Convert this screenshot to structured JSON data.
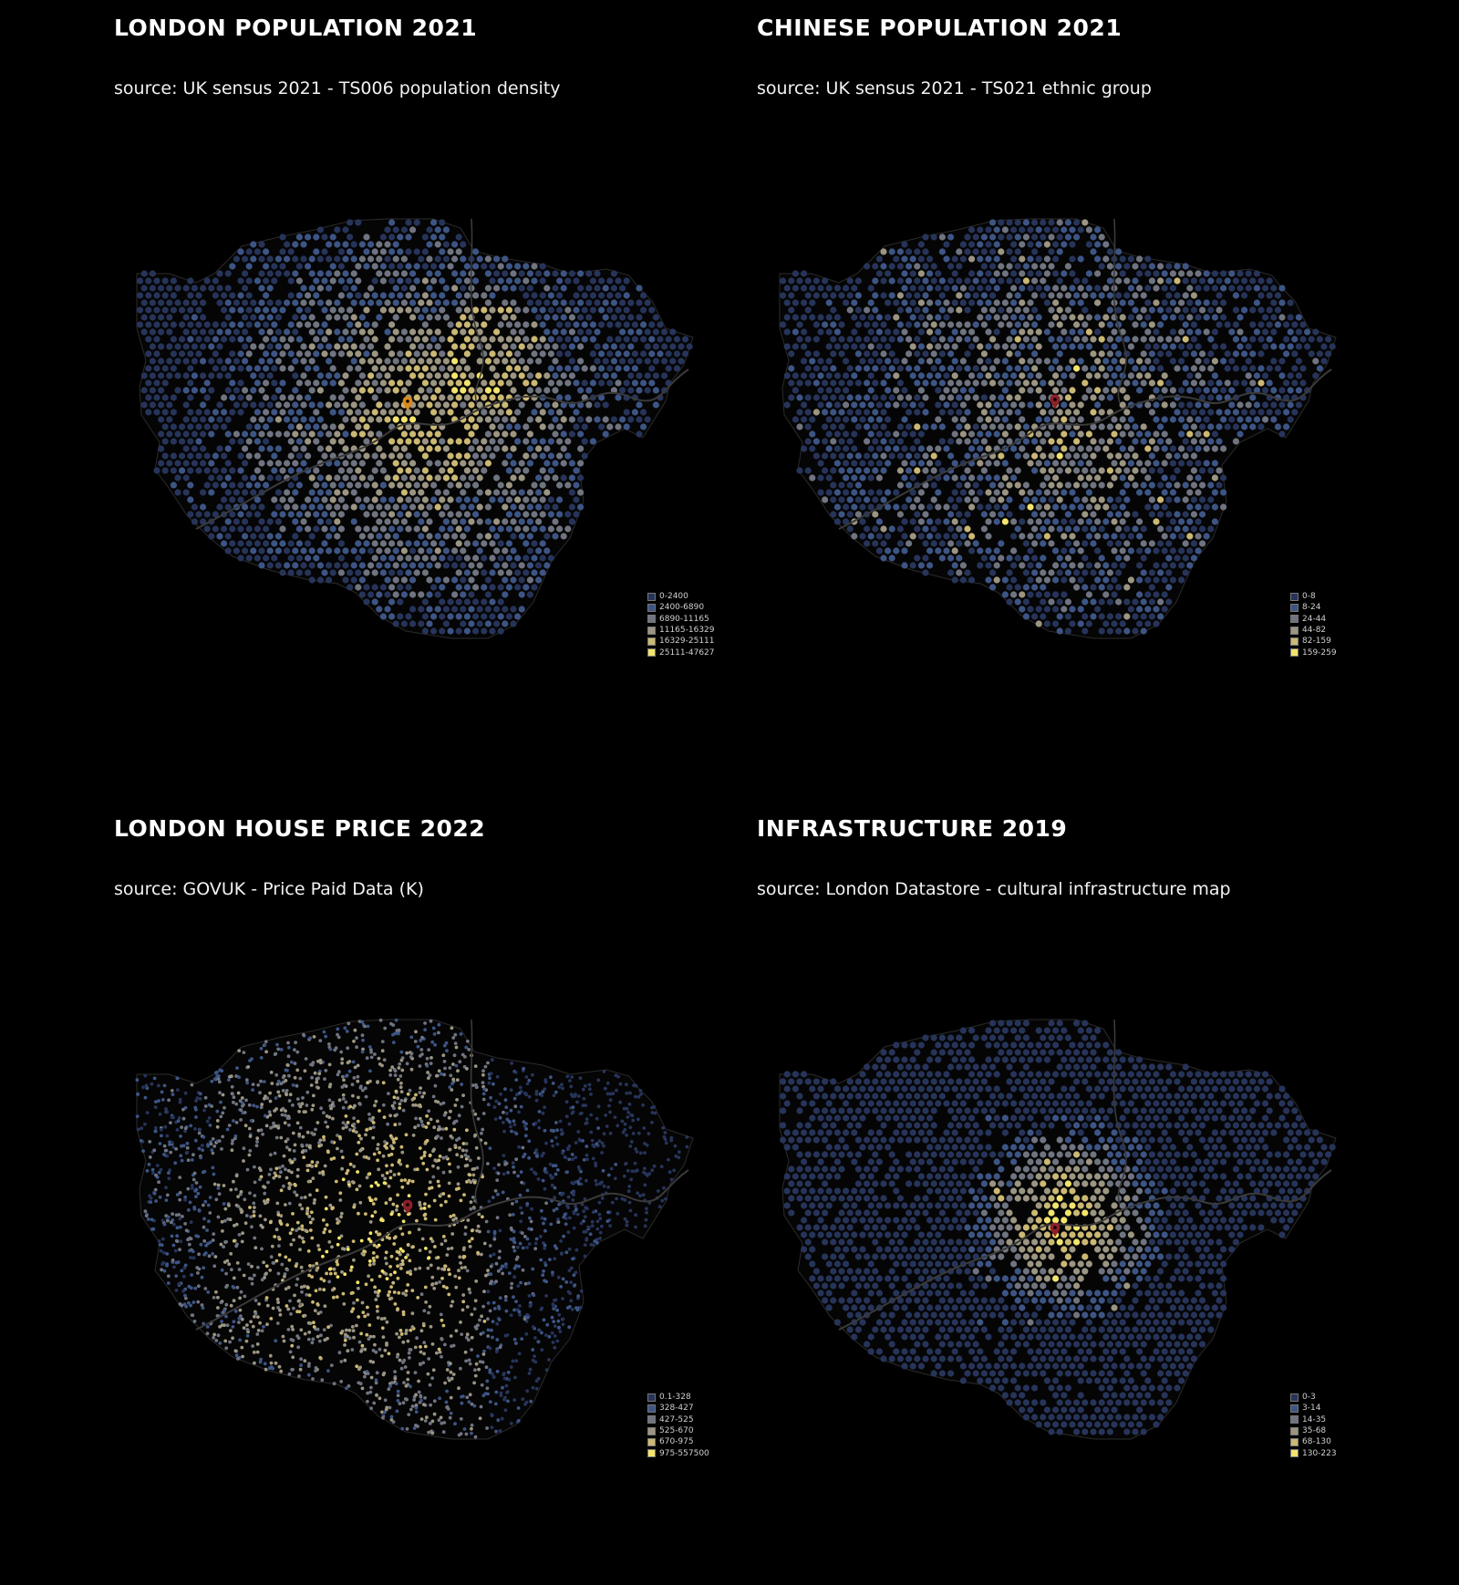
{
  "palette": [
    "#27345a",
    "#3d5585",
    "#6f7480",
    "#9b9582",
    "#cbb873",
    "#f3e46c"
  ],
  "marker_color_orange": "#d98a1f",
  "marker_color_red": "#8c1f28",
  "panels": [
    {
      "title": "LONDON POPULATION 2021",
      "source": "source: UK sensus 2021 - TS006 population density",
      "map_style": "hex",
      "pattern": "population",
      "marker_icon": "location-pin-icon",
      "legend": [
        "0-2400",
        "2400-6890",
        "6890-11165",
        "11165-16329",
        "16329-25111",
        "25111-47627"
      ]
    },
    {
      "title": "CHINESE POPULATION 2021",
      "source": "source: UK sensus 2021 - TS021 ethnic group",
      "map_style": "hex",
      "pattern": "chinese",
      "marker_icon": "location-pin-icon",
      "legend": [
        "0-8",
        "8-24",
        "24-44",
        "44-82",
        "82-159",
        "159-259"
      ]
    },
    {
      "title": "LONDON HOUSE PRICE 2022",
      "source": "source: GOVUK - Price Paid Data (K)",
      "map_style": "dots",
      "pattern": "house",
      "marker_icon": "location-pin-icon",
      "legend": [
        "0.1-328",
        "328-427",
        "427-525",
        "525-670",
        "670-975",
        "975-557500"
      ]
    },
    {
      "title": "INFRASTRUCTURE 2019",
      "source": "source: London Datastore - cultural infrastructure map",
      "map_style": "hex",
      "pattern": "infra",
      "marker_icon": "location-pin-icon",
      "legend": [
        "0-3",
        "3-14",
        "14-35",
        "35-68",
        "68-130",
        "130-223"
      ]
    }
  ]
}
